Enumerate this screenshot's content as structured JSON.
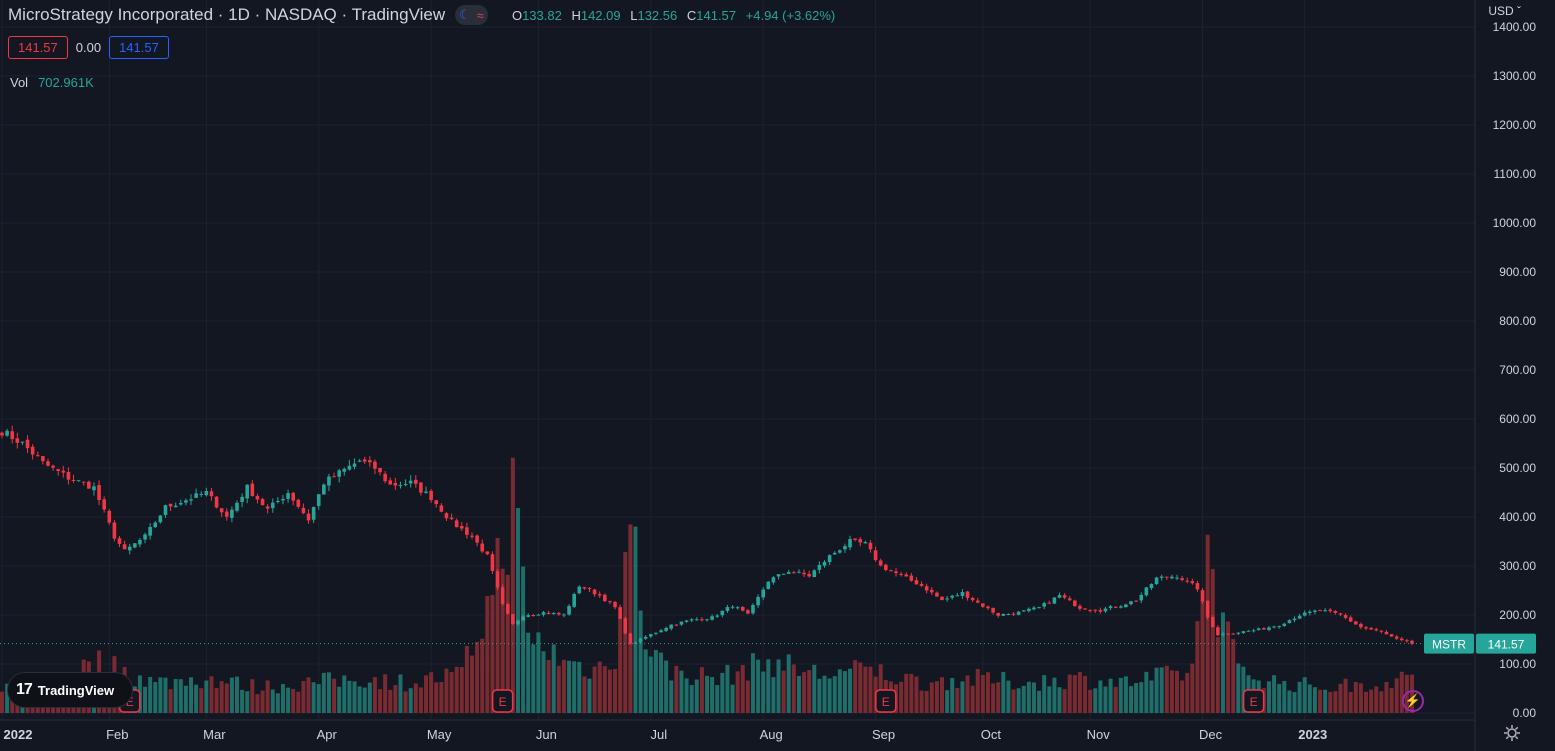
{
  "header": {
    "title": "MicroStrategy Incorporated · 1D · NASDAQ · TradingView",
    "ohlc": {
      "o_label": "O",
      "o": "133.82",
      "h_label": "H",
      "h": "142.09",
      "l_label": "L",
      "l": "132.56",
      "c_label": "C",
      "c": "141.57",
      "change": "+4.94 (+3.62%)"
    },
    "bid": "141.57",
    "spread": "0.00",
    "ask": "141.57",
    "volume_label": "Vol",
    "volume_value": "702.961K",
    "currency": "USD",
    "currency_icon": "chevron-down-icon"
  },
  "branding": {
    "logo_text": "TradingView",
    "logo_icon": "tradingview-logo-icon"
  },
  "symbol_tag": {
    "symbol": "MSTR",
    "price": "141.57"
  },
  "colors": {
    "background": "#131722",
    "grid": "#1e222d",
    "up": "#26a69a",
    "down": "#f23645",
    "up_volume": "#1f6e69",
    "down_volume": "#7a2a31",
    "text": "#d1d4dc",
    "accent": "#2962ff"
  },
  "chart_data": {
    "type": "candlestick",
    "y_ticks": [
      "1400.00",
      "1300.00",
      "1200.00",
      "1100.00",
      "1000.00",
      "900.00",
      "800.00",
      "700.00",
      "600.00",
      "500.00",
      "400.00",
      "300.00",
      "200.00",
      "100.00",
      "0.00"
    ],
    "ylim": [
      0,
      1400
    ],
    "x_ticks": [
      "2022",
      "Feb",
      "Mar",
      "Apr",
      "May",
      "Jun",
      "Jul",
      "Aug",
      "Sep",
      "Oct",
      "Nov",
      "Dec",
      "2023"
    ],
    "earnings_markers": [
      "Feb",
      "May",
      "Aug",
      "Nov"
    ],
    "earnings_label": "E",
    "grid": true,
    "last_price": 141.57,
    "close_anchors": [
      [
        0,
        575
      ],
      [
        4,
        550
      ],
      [
        8,
        510
      ],
      [
        13,
        480
      ],
      [
        18,
        460
      ],
      [
        22,
        360
      ],
      [
        24,
        330
      ],
      [
        28,
        360
      ],
      [
        32,
        420
      ],
      [
        36,
        435
      ],
      [
        40,
        450
      ],
      [
        44,
        400
      ],
      [
        48,
        460
      ],
      [
        52,
        415
      ],
      [
        56,
        450
      ],
      [
        60,
        395
      ],
      [
        63,
        470
      ],
      [
        66,
        490
      ],
      [
        70,
        515
      ],
      [
        73,
        500
      ],
      [
        76,
        465
      ],
      [
        80,
        470
      ],
      [
        84,
        440
      ],
      [
        88,
        390
      ],
      [
        92,
        360
      ],
      [
        95,
        320
      ],
      [
        98,
        220
      ],
      [
        100,
        180
      ],
      [
        102,
        200
      ],
      [
        106,
        205
      ],
      [
        110,
        200
      ],
      [
        113,
        260
      ],
      [
        117,
        240
      ],
      [
        120,
        215
      ],
      [
        123,
        140
      ],
      [
        127,
        160
      ],
      [
        131,
        180
      ],
      [
        135,
        190
      ],
      [
        139,
        195
      ],
      [
        143,
        220
      ],
      [
        146,
        200
      ],
      [
        150,
        270
      ],
      [
        154,
        290
      ],
      [
        158,
        280
      ],
      [
        162,
        320
      ],
      [
        166,
        350
      ],
      [
        169,
        345
      ],
      [
        172,
        300
      ],
      [
        176,
        280
      ],
      [
        180,
        260
      ],
      [
        184,
        230
      ],
      [
        188,
        245
      ],
      [
        191,
        225
      ],
      [
        195,
        200
      ],
      [
        199,
        205
      ],
      [
        203,
        215
      ],
      [
        207,
        240
      ],
      [
        211,
        215
      ],
      [
        215,
        210
      ],
      [
        219,
        220
      ],
      [
        222,
        230
      ],
      [
        226,
        275
      ],
      [
        230,
        280
      ],
      [
        234,
        255
      ],
      [
        236,
        195
      ],
      [
        238,
        160
      ],
      [
        242,
        165
      ],
      [
        246,
        170
      ],
      [
        250,
        180
      ],
      [
        254,
        200
      ],
      [
        258,
        210
      ],
      [
        262,
        200
      ],
      [
        266,
        175
      ],
      [
        270,
        165
      ],
      [
        273,
        150
      ],
      [
        276,
        141.57
      ]
    ],
    "volume_anchors": [
      [
        0,
        5
      ],
      [
        10,
        8
      ],
      [
        20,
        12
      ],
      [
        23,
        10
      ],
      [
        30,
        7
      ],
      [
        40,
        8
      ],
      [
        50,
        6
      ],
      [
        60,
        7
      ],
      [
        70,
        8
      ],
      [
        80,
        7
      ],
      [
        90,
        9
      ],
      [
        96,
        28
      ],
      [
        98,
        40
      ],
      [
        100,
        50
      ],
      [
        103,
        18
      ],
      [
        110,
        12
      ],
      [
        116,
        10
      ],
      [
        120,
        14
      ],
      [
        123,
        45
      ],
      [
        126,
        18
      ],
      [
        130,
        10
      ],
      [
        140,
        8
      ],
      [
        150,
        12
      ],
      [
        160,
        9
      ],
      [
        170,
        10
      ],
      [
        180,
        7
      ],
      [
        190,
        8
      ],
      [
        200,
        7
      ],
      [
        210,
        8
      ],
      [
        220,
        7
      ],
      [
        230,
        9
      ],
      [
        233,
        10
      ],
      [
        236,
        40
      ],
      [
        238,
        25
      ],
      [
        242,
        10
      ],
      [
        250,
        7
      ],
      [
        260,
        6
      ],
      [
        270,
        7
      ],
      [
        276,
        8
      ]
    ]
  }
}
